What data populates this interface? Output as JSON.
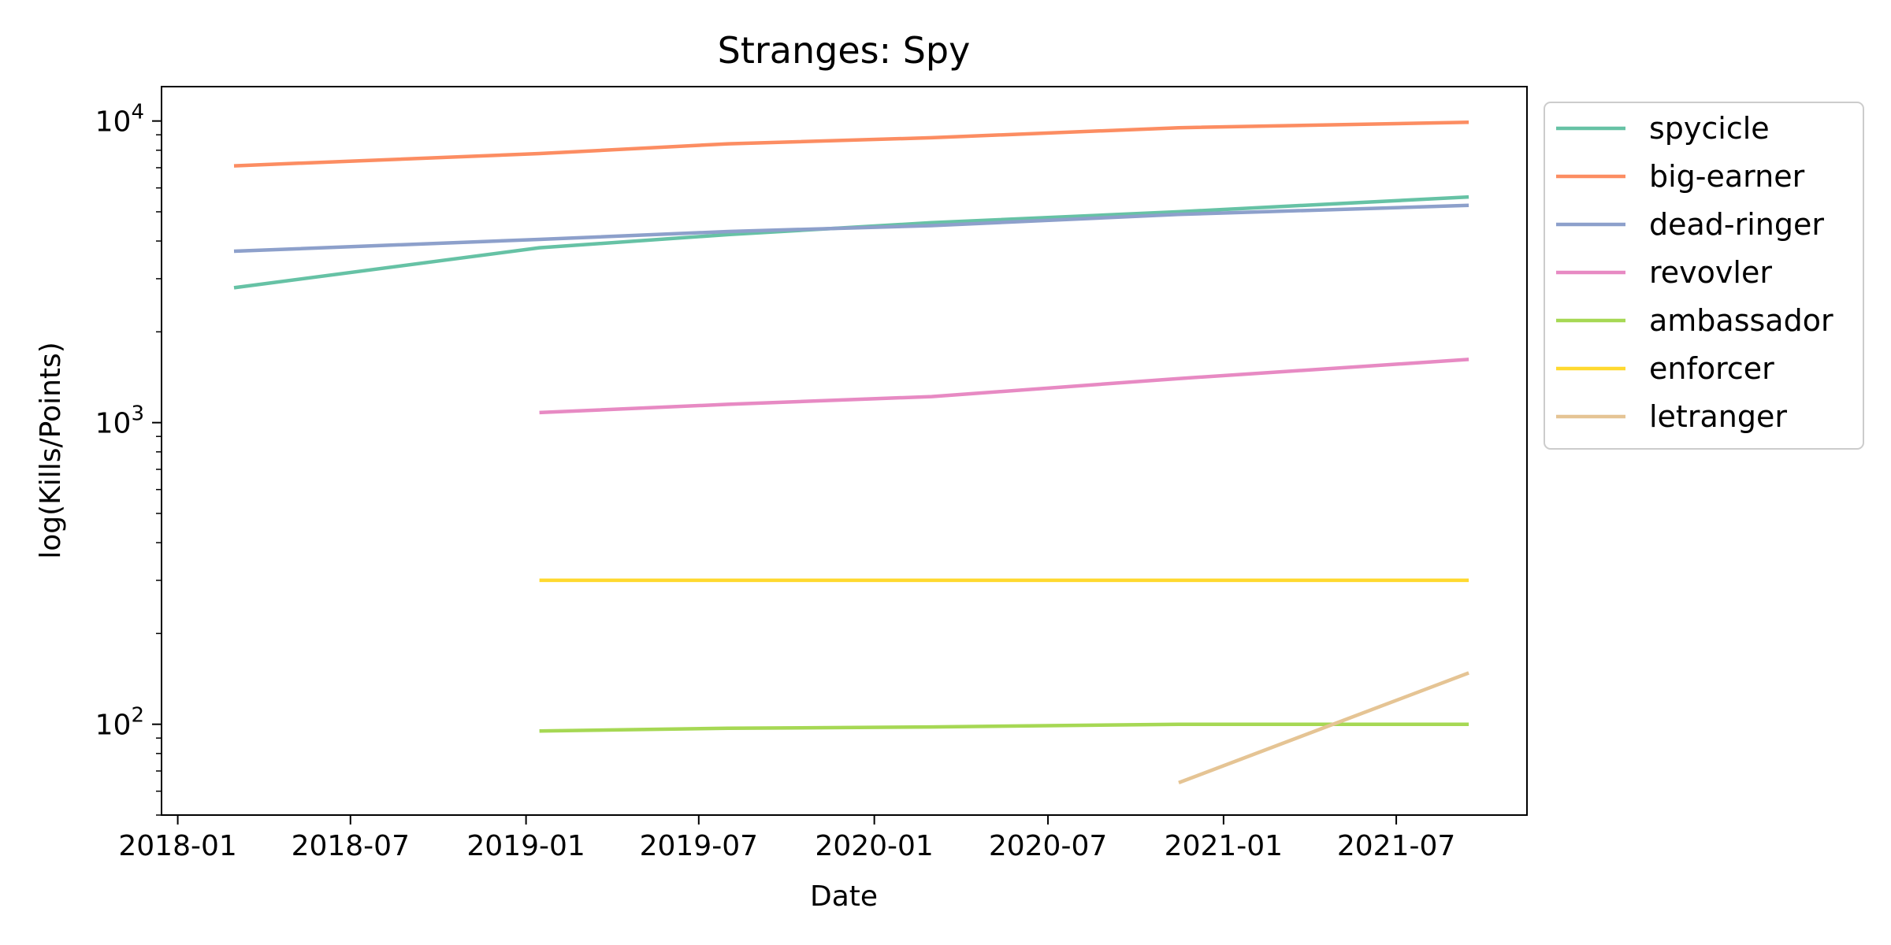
{
  "chart_data": {
    "type": "line",
    "title": "Stranges: Spy",
    "xlabel": "Date",
    "ylabel": "log(Kills/Points)",
    "yscale": "log",
    "ylim": [
      50,
      13000
    ],
    "xlim": [
      "2017-12-15",
      "2021-11-15"
    ],
    "grid": false,
    "legend_position": "outside-right-top",
    "x_ticks": [
      "2018-01",
      "2018-07",
      "2019-01",
      "2019-07",
      "2020-01",
      "2020-07",
      "2021-01",
      "2021-07"
    ],
    "y_ticks": [
      {
        "value": 100,
        "base": "10",
        "exp": "2"
      },
      {
        "value": 1000,
        "base": "10",
        "exp": "3"
      },
      {
        "value": 10000,
        "base": "10",
        "exp": "4"
      }
    ],
    "series": [
      {
        "name": "spycicle",
        "color": "#66c2a5",
        "points": [
          [
            "2018-03-01",
            2800
          ],
          [
            "2019-01-15",
            3800
          ],
          [
            "2019-08-01",
            4200
          ],
          [
            "2020-03-01",
            4600
          ],
          [
            "2020-11-15",
            5000
          ],
          [
            "2021-09-15",
            5600
          ]
        ]
      },
      {
        "name": "big-earner",
        "color": "#fc8d62",
        "points": [
          [
            "2018-03-01",
            7100
          ],
          [
            "2019-01-15",
            7800
          ],
          [
            "2019-08-01",
            8400
          ],
          [
            "2020-03-01",
            8800
          ],
          [
            "2020-11-15",
            9500
          ],
          [
            "2021-09-15",
            9900
          ]
        ]
      },
      {
        "name": "dead-ringer",
        "color": "#8da0cb",
        "points": [
          [
            "2018-03-01",
            3700
          ],
          [
            "2019-01-15",
            4050
          ],
          [
            "2019-08-01",
            4300
          ],
          [
            "2020-03-01",
            4500
          ],
          [
            "2020-11-15",
            4900
          ],
          [
            "2021-09-15",
            5250
          ]
        ]
      },
      {
        "name": "revovler",
        "color": "#e78ac3",
        "points": [
          [
            "2019-01-15",
            1080
          ],
          [
            "2019-08-01",
            1150
          ],
          [
            "2020-03-01",
            1220
          ],
          [
            "2020-11-15",
            1400
          ],
          [
            "2021-09-15",
            1620
          ]
        ]
      },
      {
        "name": "ambassador",
        "color": "#a6d854",
        "points": [
          [
            "2019-01-15",
            95
          ],
          [
            "2019-08-01",
            97
          ],
          [
            "2020-03-01",
            98
          ],
          [
            "2020-11-15",
            100
          ],
          [
            "2021-09-15",
            100
          ]
        ]
      },
      {
        "name": "enforcer",
        "color": "#ffd92f",
        "points": [
          [
            "2019-01-15",
            300
          ],
          [
            "2019-08-01",
            300
          ],
          [
            "2020-03-01",
            300
          ],
          [
            "2020-11-15",
            300
          ],
          [
            "2021-09-15",
            300
          ]
        ]
      },
      {
        "name": "letranger",
        "color": "#e5c494",
        "points": [
          [
            "2020-11-15",
            64
          ],
          [
            "2021-09-15",
            148
          ]
        ]
      }
    ]
  }
}
